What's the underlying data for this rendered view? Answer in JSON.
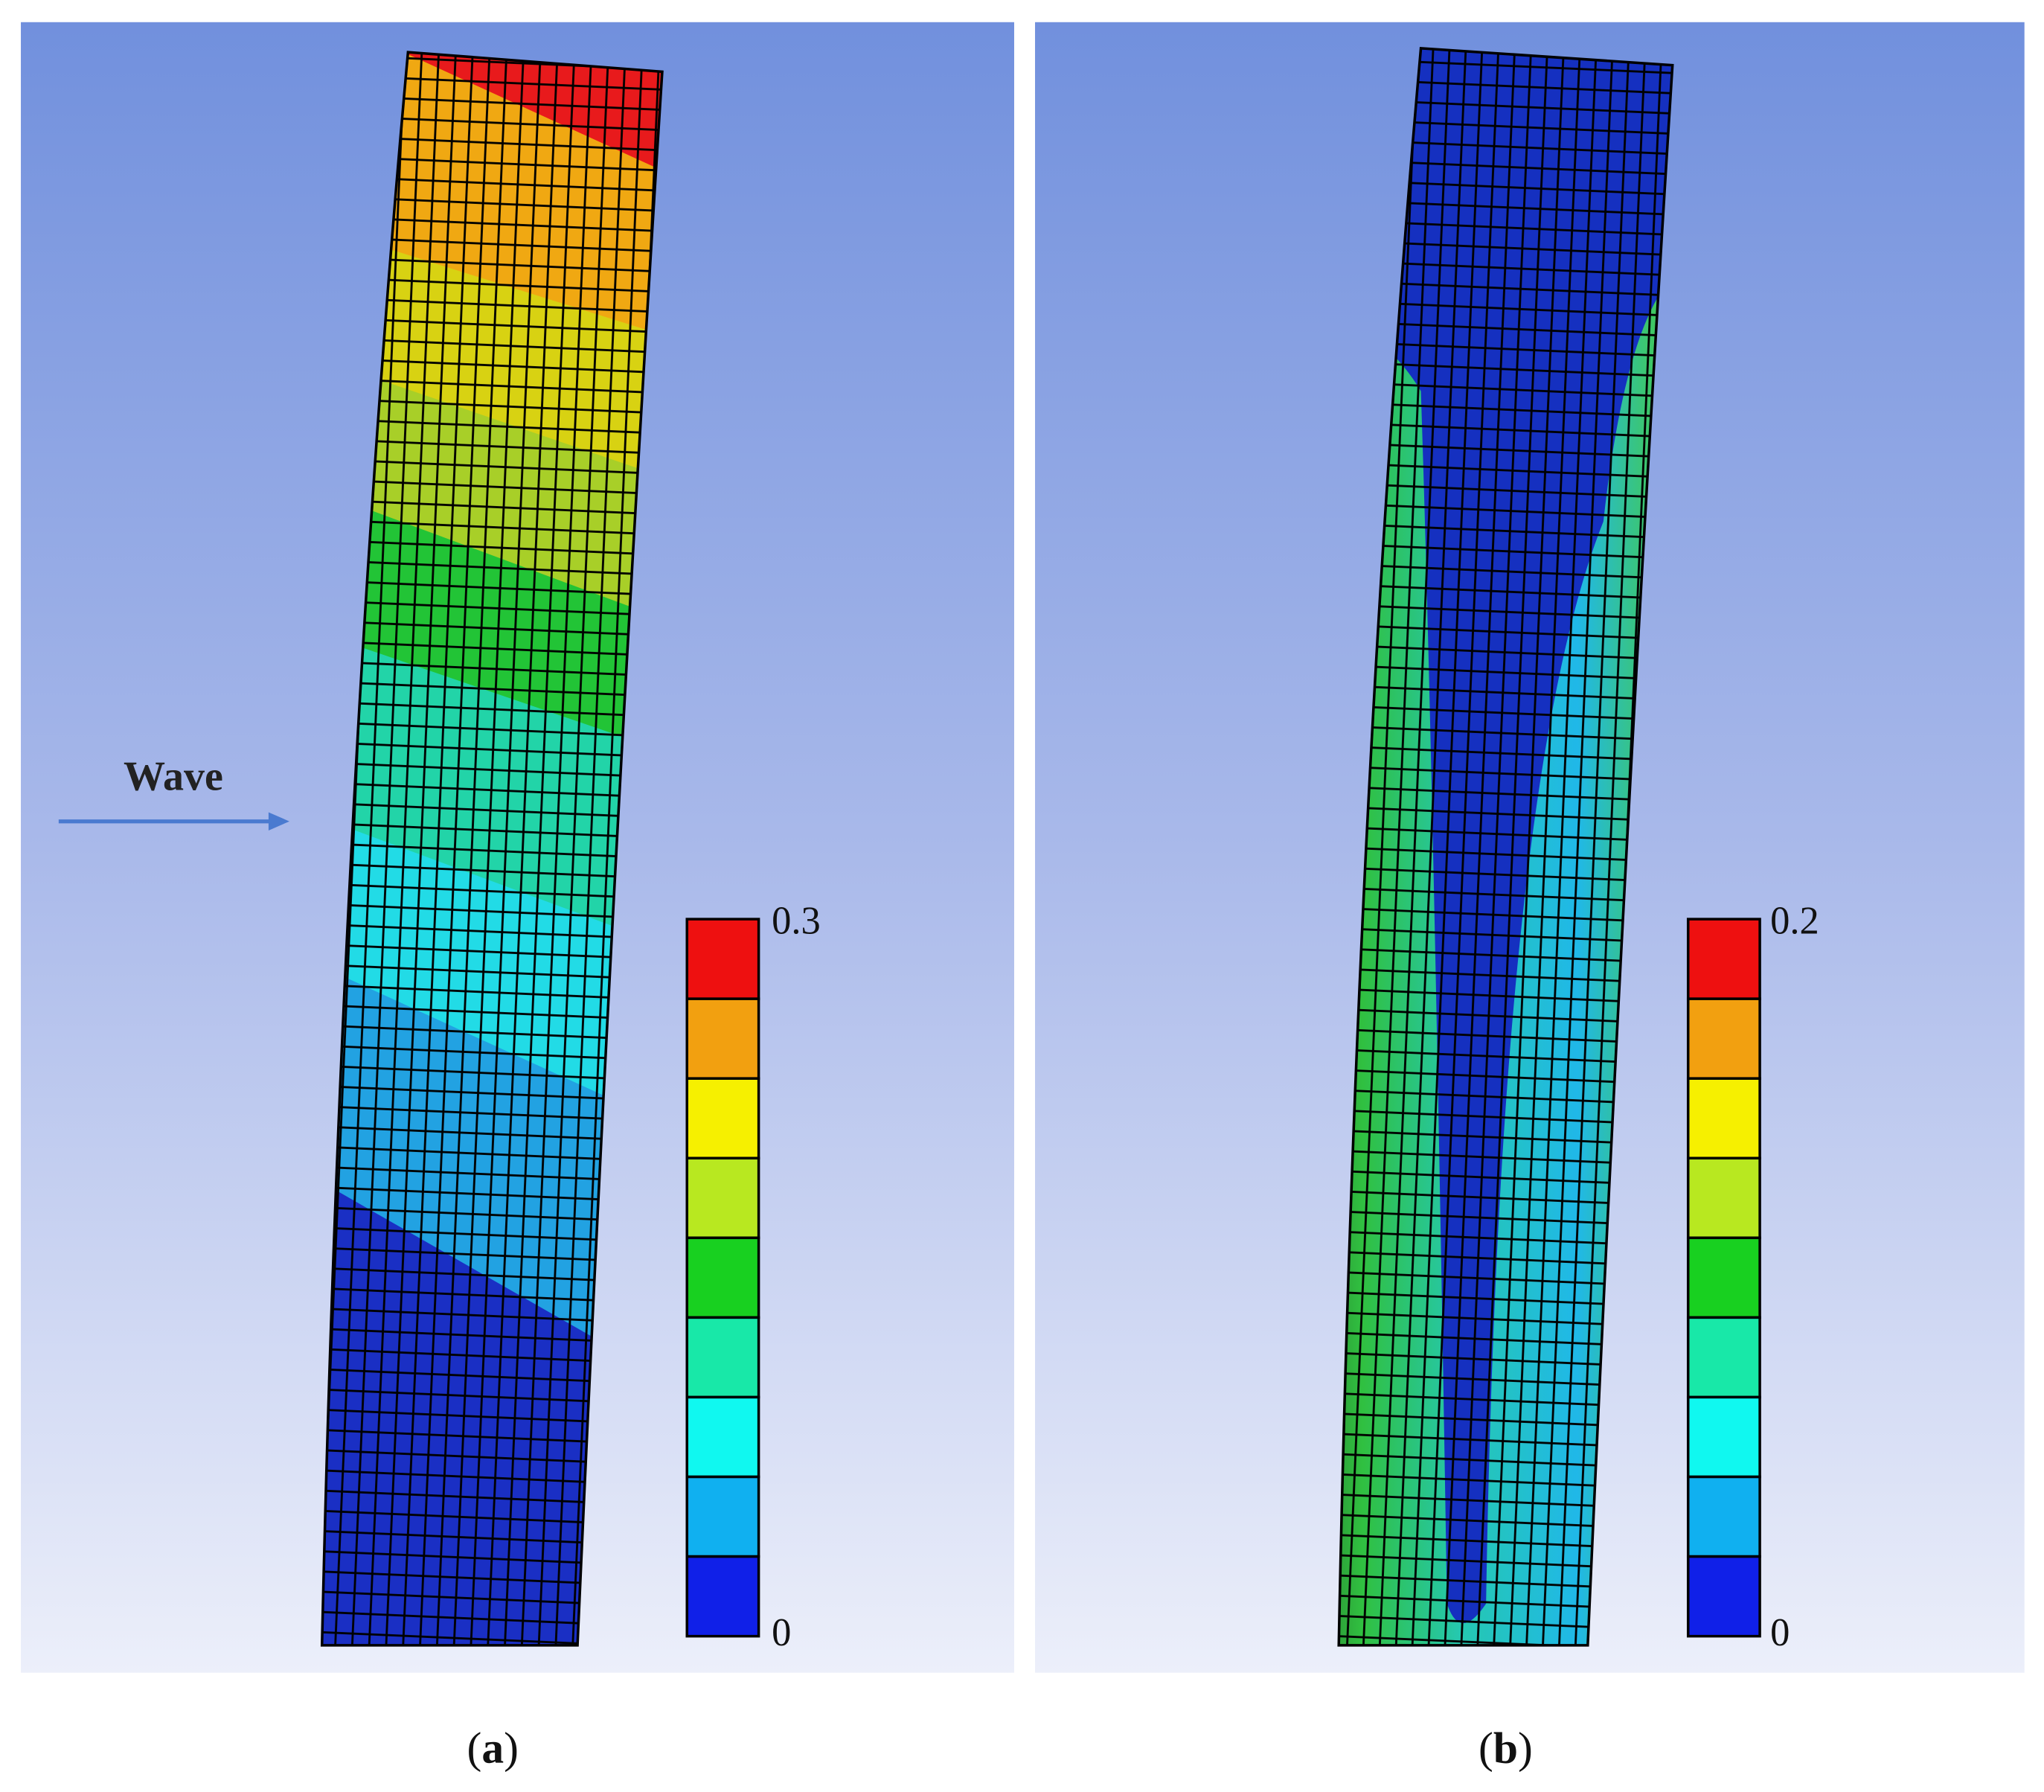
{
  "panels": [
    {
      "annotation": "Wave",
      "legend": {
        "max": "0.3",
        "min": "0"
      },
      "caption": {
        "open": "(",
        "letter": "a",
        "close": ")"
      }
    },
    {
      "legend": {
        "max": "0.2",
        "min": "0"
      },
      "caption": {
        "open": "(",
        "letter": "b",
        "close": ")"
      }
    }
  ]
}
